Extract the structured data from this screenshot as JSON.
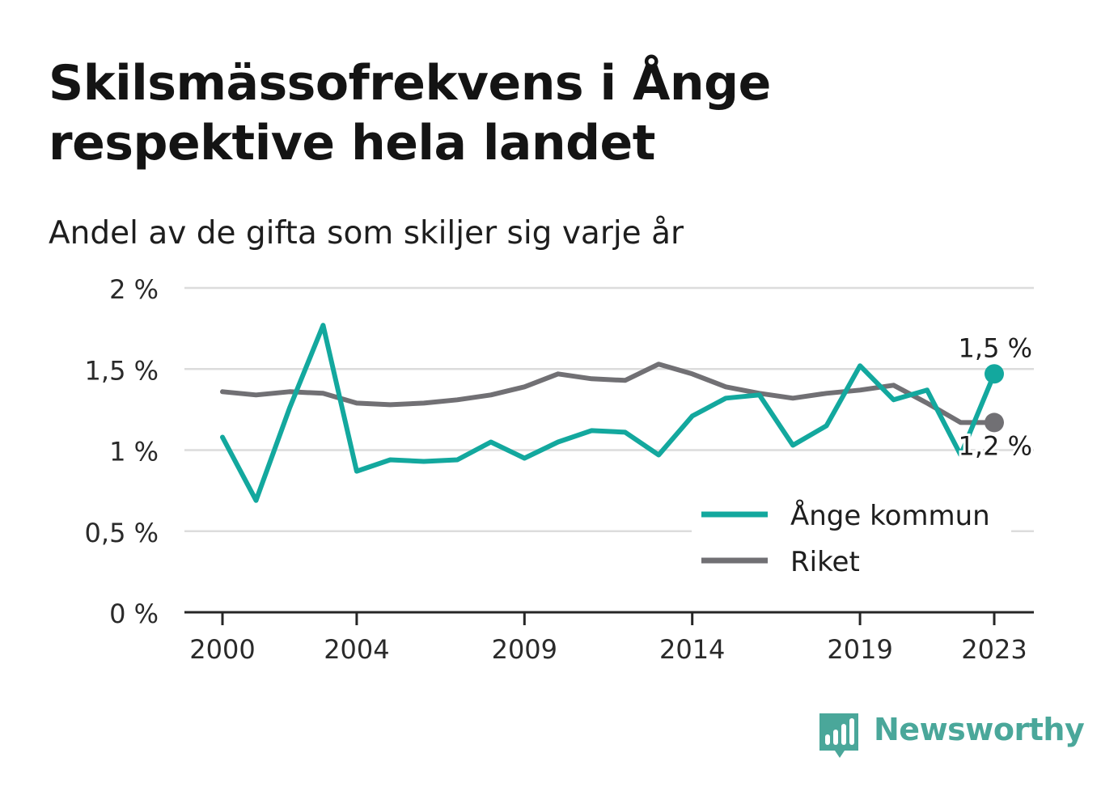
{
  "title": "Skilsmässofrekvens i Ånge respektive hela landet",
  "subtitle": "Andel av de gifta som skiljer sig varje år",
  "brand": {
    "name": "Newsworthy",
    "icon": "bar-chart-speech-bubble-icon",
    "color": "#4aa79a"
  },
  "chart_data": {
    "type": "line",
    "x": [
      2000,
      2001,
      2002,
      2003,
      2004,
      2005,
      2006,
      2007,
      2008,
      2009,
      2010,
      2011,
      2012,
      2013,
      2014,
      2015,
      2016,
      2017,
      2018,
      2019,
      2020,
      2021,
      2022,
      2023
    ],
    "x_ticks": [
      "2000",
      "2004",
      "2009",
      "2014",
      "2019",
      "2023"
    ],
    "y_ticks": [
      "0 %",
      "0,5 %",
      "1 %",
      "1,5 %",
      "2 %"
    ],
    "ylim": [
      0,
      2
    ],
    "grid": true,
    "legend_position": "bottom-right",
    "series": [
      {
        "name": "Ånge kommun",
        "color": "#13a89e",
        "values": [
          1.08,
          0.69,
          1.26,
          1.77,
          0.87,
          0.94,
          0.93,
          0.94,
          1.05,
          0.95,
          1.05,
          1.12,
          1.11,
          0.97,
          1.21,
          1.32,
          1.34,
          1.03,
          1.15,
          1.52,
          1.31,
          1.37,
          0.97,
          1.47
        ],
        "end_label": "1,5 %"
      },
      {
        "name": "Riket",
        "color": "#717074",
        "values": [
          1.36,
          1.34,
          1.36,
          1.35,
          1.29,
          1.28,
          1.29,
          1.31,
          1.34,
          1.39,
          1.47,
          1.44,
          1.43,
          1.53,
          1.47,
          1.39,
          1.35,
          1.32,
          1.35,
          1.37,
          1.4,
          1.29,
          1.17,
          1.17
        ],
        "end_label": "1,2 %"
      }
    ]
  }
}
